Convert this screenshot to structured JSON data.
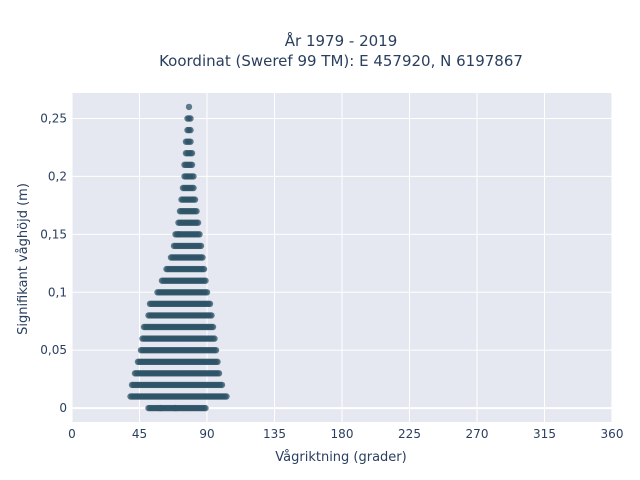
{
  "chart_data": {
    "type": "scatter",
    "title_line1": "År 1979 - 2019",
    "title_line2": "Koordinat (Sweref 99 TM): E 457920, N 6197867",
    "xlabel": "Vågriktning (grader)",
    "ylabel": "Signifikant våghöjd (m)",
    "xlim": [
      0,
      360
    ],
    "ylim": [
      -0.012,
      0.272
    ],
    "x_ticks": [
      0,
      45,
      90,
      135,
      180,
      225,
      270,
      315,
      360
    ],
    "x_tick_labels": [
      "0",
      "45",
      "90",
      "135",
      "180",
      "225",
      "270",
      "315",
      "360"
    ],
    "y_ticks": [
      0,
      0.05,
      0.1,
      0.15,
      0.2,
      0.25
    ],
    "y_tick_labels": [
      "0",
      "0,05",
      "0,1",
      "0,15",
      "0,2",
      "0,25"
    ],
    "grid": true,
    "marker_color": "#2f5468",
    "plot_background": "#e5e8f0",
    "bands": [
      {
        "y": 0.0,
        "x_min": 51,
        "x_max": 88
      },
      {
        "y": 0.01,
        "x_min": 39,
        "x_max": 102
      },
      {
        "y": 0.02,
        "x_min": 40,
        "x_max": 100
      },
      {
        "y": 0.03,
        "x_min": 42,
        "x_max": 98
      },
      {
        "y": 0.04,
        "x_min": 44,
        "x_max": 97
      },
      {
        "y": 0.05,
        "x_min": 46,
        "x_max": 96
      },
      {
        "y": 0.06,
        "x_min": 47,
        "x_max": 95
      },
      {
        "y": 0.07,
        "x_min": 48,
        "x_max": 94
      },
      {
        "y": 0.08,
        "x_min": 51,
        "x_max": 93
      },
      {
        "y": 0.09,
        "x_min": 52,
        "x_max": 92
      },
      {
        "y": 0.1,
        "x_min": 57,
        "x_max": 90
      },
      {
        "y": 0.11,
        "x_min": 60,
        "x_max": 89
      },
      {
        "y": 0.12,
        "x_min": 63,
        "x_max": 88
      },
      {
        "y": 0.13,
        "x_min": 66,
        "x_max": 87
      },
      {
        "y": 0.14,
        "x_min": 68,
        "x_max": 86
      },
      {
        "y": 0.15,
        "x_min": 69,
        "x_max": 85
      },
      {
        "y": 0.16,
        "x_min": 71,
        "x_max": 84
      },
      {
        "y": 0.17,
        "x_min": 72,
        "x_max": 83
      },
      {
        "y": 0.18,
        "x_min": 73,
        "x_max": 82
      },
      {
        "y": 0.19,
        "x_min": 74,
        "x_max": 81
      },
      {
        "y": 0.2,
        "x_min": 75,
        "x_max": 81
      },
      {
        "y": 0.21,
        "x_min": 75,
        "x_max": 80
      },
      {
        "y": 0.22,
        "x_min": 76,
        "x_max": 80
      },
      {
        "y": 0.23,
        "x_min": 76,
        "x_max": 79
      },
      {
        "y": 0.24,
        "x_min": 77,
        "x_max": 79
      },
      {
        "y": 0.25,
        "x_min": 77,
        "x_max": 79
      },
      {
        "y": 0.26,
        "x_min": 78,
        "x_max": 78
      }
    ],
    "outliers": [
      {
        "x": 103,
        "y": 0.01
      },
      {
        "x": 89,
        "y": 0.0
      },
      {
        "x": 69,
        "y": 0.0
      },
      {
        "x": 59,
        "y": 0.0
      },
      {
        "x": 71,
        "y": 0.15
      }
    ]
  }
}
